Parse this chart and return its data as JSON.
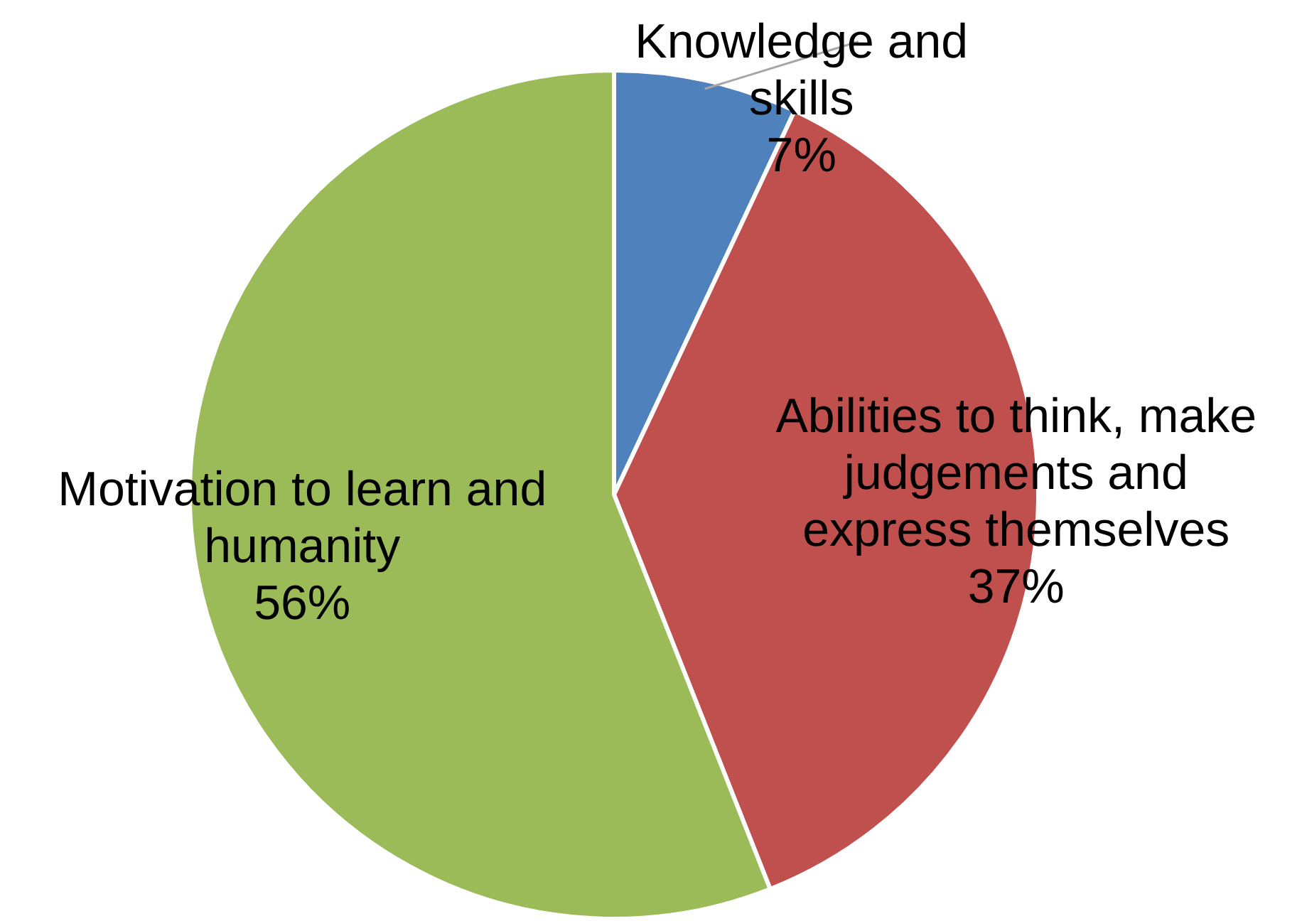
{
  "chart_data": {
    "type": "pie",
    "categories": [
      "Knowledge and skills",
      "Abilities to think, make judgements and express themselves",
      "Motivation to learn and humanity"
    ],
    "values": [
      7,
      37,
      56
    ],
    "colors": [
      "#4f81bd",
      "#c0504d",
      "#9bbb59"
    ],
    "value_labels": [
      "7%",
      "37%",
      "56%"
    ],
    "legend": false
  }
}
